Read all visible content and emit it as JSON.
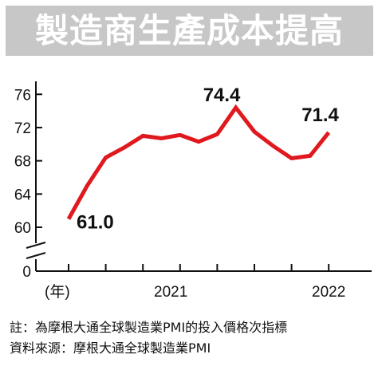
{
  "title": "製造商生產成本提高",
  "chart_data": {
    "type": "line",
    "series": [
      {
        "color": "#e0191f",
        "values": [
          61.0,
          65.0,
          68.4,
          69.6,
          71.0,
          70.7,
          71.1,
          70.3,
          71.2,
          74.4,
          71.5,
          69.8,
          68.3,
          68.6,
          71.4
        ]
      }
    ],
    "x_axis": {
      "unit_label": "(年)",
      "tick_labels": [
        {
          "label": "2021",
          "index": 5.5
        },
        {
          "label": "2022",
          "index": 14
        }
      ],
      "minor_ticks_at_index": [
        0,
        2,
        4,
        6,
        8,
        10,
        12,
        14
      ]
    },
    "y_axis": {
      "ticks": [
        60,
        64,
        68,
        72,
        76
      ],
      "origin_label": "0",
      "broken": true,
      "range": [
        60,
        76.7
      ]
    },
    "data_labels": [
      {
        "text": "61.0",
        "index": 0
      },
      {
        "text": "74.4",
        "index": 9
      },
      {
        "text": "71.4",
        "index": 14
      }
    ],
    "grid": false,
    "legend": "none"
  },
  "notes": {
    "note": "註：為摩根大通全球製造業PMI的投入價格次指標",
    "source": "資料來源：摩根大通全球製造業PMI"
  }
}
